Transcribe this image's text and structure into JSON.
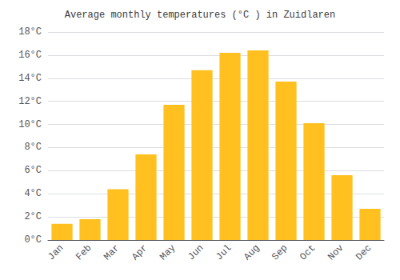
{
  "chart_data": {
    "type": "bar",
    "title": "Average monthly temperatures (°C ) in Zuidlaren",
    "categories": [
      "Jan",
      "Feb",
      "Mar",
      "Apr",
      "May",
      "Jun",
      "Jul",
      "Aug",
      "Sep",
      "Oct",
      "Nov",
      "Dec"
    ],
    "values": [
      1.4,
      1.8,
      4.4,
      7.4,
      11.7,
      14.7,
      16.2,
      16.4,
      13.7,
      10.1,
      5.6,
      2.7
    ],
    "color": "#FFC020",
    "ylim": [
      0,
      18
    ],
    "yticks": [
      {
        "value": 0,
        "label": "0°C"
      },
      {
        "value": 2,
        "label": "2°C"
      },
      {
        "value": 4,
        "label": "4°C"
      },
      {
        "value": 6,
        "label": "6°C"
      },
      {
        "value": 8,
        "label": "8°C"
      },
      {
        "value": 10,
        "label": "10°C"
      },
      {
        "value": 12,
        "label": "12°C"
      },
      {
        "value": 14,
        "label": "14°C"
      },
      {
        "value": 16,
        "label": "16°C"
      },
      {
        "value": 18,
        "label": "18°C"
      }
    ],
    "grid": true
  }
}
